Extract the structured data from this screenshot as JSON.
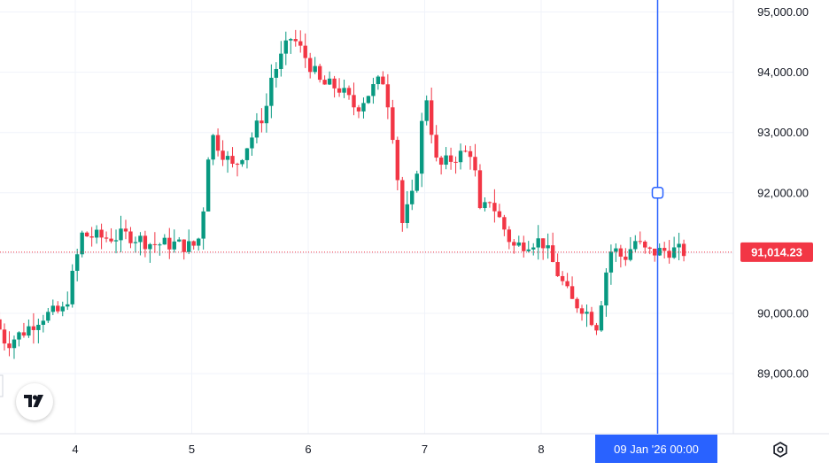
{
  "chart_data": {
    "type": "candlestick",
    "ylim": [
      88000,
      95200
    ],
    "xlim": [
      3.35,
      9.0
    ],
    "grid": true,
    "y_ticks": [
      89000,
      90000,
      91000,
      92000,
      93000,
      94000,
      95000
    ],
    "y_tick_labels": [
      "89,000.00",
      "90,000.00",
      "91,000.00",
      "92,000.00",
      "93,000.00",
      "94,000.00",
      "95,000.00"
    ],
    "x_ticks": [
      4,
      5,
      6,
      7,
      8
    ],
    "x_tick_labels": [
      "4",
      "5",
      "6",
      "7",
      "8"
    ],
    "last_price": 91014.23,
    "last_price_label": "91,014.23",
    "crosshair_x": 9.0,
    "crosshair_price": 92000,
    "crosshair_label": "09 Jan '26   00:00",
    "up_color": "#089981",
    "down_color": "#f23645",
    "crosshair_color": "#2962ff",
    "anchors": [
      [
        3.35,
        89900
      ],
      [
        3.45,
        89500
      ],
      [
        3.6,
        89700
      ],
      [
        3.75,
        89950
      ],
      [
        3.95,
        90050
      ],
      [
        4.1,
        91300
      ],
      [
        4.3,
        91250
      ],
      [
        4.5,
        91300
      ],
      [
        4.7,
        91150
      ],
      [
        4.9,
        91150
      ],
      [
        5.05,
        91100
      ],
      [
        5.12,
        91300
      ],
      [
        5.2,
        93000
      ],
      [
        5.3,
        92700
      ],
      [
        5.4,
        92400
      ],
      [
        5.55,
        92900
      ],
      [
        5.68,
        93400
      ],
      [
        5.72,
        93900
      ],
      [
        5.8,
        94200
      ],
      [
        5.9,
        94600
      ],
      [
        6.05,
        94150
      ],
      [
        6.15,
        93800
      ],
      [
        6.3,
        93750
      ],
      [
        6.45,
        93400
      ],
      [
        6.58,
        93700
      ],
      [
        6.68,
        93900
      ],
      [
        6.75,
        93300
      ],
      [
        6.85,
        91500
      ],
      [
        6.95,
        92000
      ],
      [
        7.05,
        93700
      ],
      [
        7.15,
        92400
      ],
      [
        7.3,
        92600
      ],
      [
        7.45,
        92700
      ],
      [
        7.52,
        91600
      ],
      [
        7.6,
        91900
      ],
      [
        7.7,
        91500
      ],
      [
        7.8,
        91100
      ],
      [
        7.95,
        91200
      ],
      [
        8.05,
        91200
      ],
      [
        8.15,
        90800
      ],
      [
        8.3,
        90200
      ],
      [
        8.4,
        90100
      ],
      [
        8.52,
        89800
      ],
      [
        8.6,
        90700
      ],
      [
        8.65,
        91100
      ],
      [
        8.75,
        90900
      ],
      [
        8.85,
        91200
      ],
      [
        8.95,
        91000
      ],
      [
        9.15,
        91050
      ],
      [
        9.3,
        91014
      ]
    ]
  }
}
